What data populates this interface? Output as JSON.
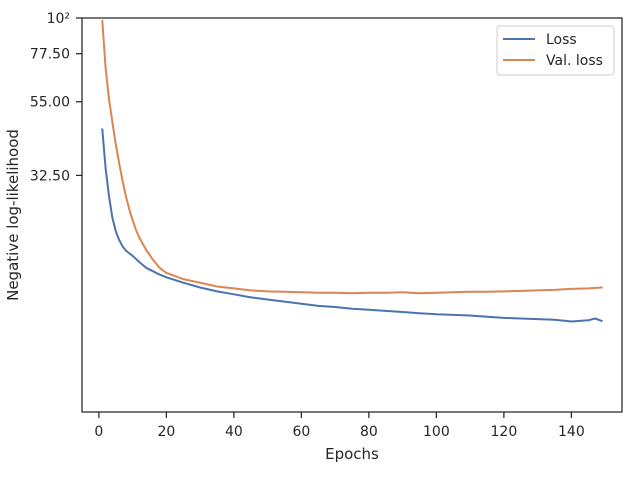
{
  "chart_data": {
    "type": "line",
    "title": "",
    "xlabel": "Epochs",
    "ylabel": "Negative log-likelihood",
    "y_scale": "log",
    "xlim": [
      -5,
      155
    ],
    "ylim": [
      6,
      100
    ],
    "x_ticks": [
      0,
      20,
      40,
      60,
      80,
      100,
      120,
      140
    ],
    "x_tick_labels": [
      "0",
      "20",
      "40",
      "60",
      "80",
      "100",
      "120",
      "140"
    ],
    "y_ticks": [
      32.5,
      55,
      77.5,
      100
    ],
    "y_tick_labels": [
      "32.50",
      "55.00",
      "77.50",
      "10²"
    ],
    "grid": false,
    "legend_position": "top-right",
    "series": [
      {
        "name": "Loss",
        "color": "#4c72b0",
        "x": [
          1,
          2,
          3,
          4,
          5,
          6,
          7,
          8,
          10,
          12,
          14,
          16,
          18,
          20,
          25,
          30,
          35,
          40,
          45,
          50,
          55,
          60,
          65,
          70,
          75,
          80,
          85,
          90,
          95,
          100,
          105,
          110,
          115,
          120,
          125,
          130,
          135,
          140,
          145,
          147,
          149
        ],
        "values": [
          45.2,
          34.2,
          28.0,
          24.0,
          21.8,
          20.5,
          19.6,
          19.0,
          18.3,
          17.5,
          16.8,
          16.4,
          16.0,
          15.7,
          15.1,
          14.6,
          14.2,
          13.9,
          13.6,
          13.4,
          13.2,
          13.0,
          12.8,
          12.7,
          12.55,
          12.45,
          12.35,
          12.25,
          12.15,
          12.05,
          12.0,
          11.95,
          11.85,
          11.75,
          11.7,
          11.65,
          11.6,
          11.45,
          11.55,
          11.7,
          11.5
        ]
      },
      {
        "name": "Val. loss",
        "color": "#dd8452",
        "x": [
          1,
          2,
          3,
          4,
          5,
          6,
          7,
          8,
          9,
          10,
          11,
          12,
          14,
          16,
          18,
          20,
          25,
          30,
          35,
          40,
          45,
          50,
          55,
          60,
          65,
          70,
          75,
          80,
          85,
          90,
          95,
          100,
          105,
          110,
          115,
          120,
          125,
          130,
          135,
          140,
          145,
          149
        ],
        "values": [
          98,
          70,
          56,
          47.5,
          40.5,
          35.5,
          31.3,
          28.0,
          25.5,
          23.6,
          22.0,
          20.8,
          19.1,
          17.8,
          16.8,
          16.2,
          15.5,
          15.1,
          14.7,
          14.5,
          14.3,
          14.2,
          14.15,
          14.1,
          14.05,
          14.05,
          14.0,
          14.05,
          14.05,
          14.1,
          14.0,
          14.05,
          14.1,
          14.15,
          14.15,
          14.2,
          14.25,
          14.3,
          14.35,
          14.45,
          14.5,
          14.6
        ]
      }
    ]
  }
}
